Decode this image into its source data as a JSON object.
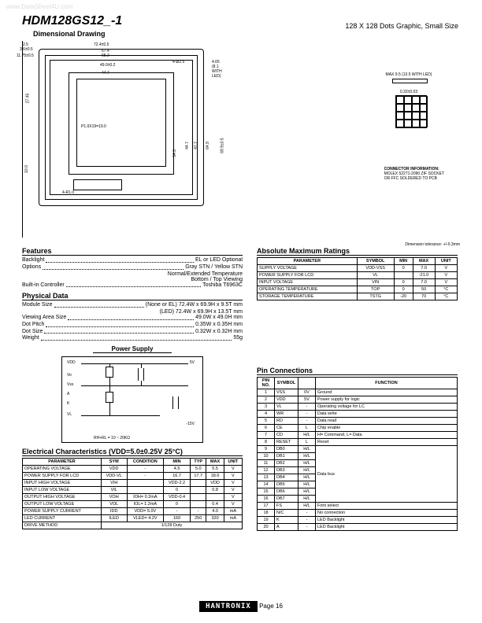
{
  "watermark": "www.DataSheet4U.com",
  "part_number": "HDM128GS12_-1",
  "dimensional_heading": "Dimensional Drawing",
  "right_heading": "128 X 128 Dots Graphic, Small Size",
  "tolerance": "Dimension tolerance: +/-0.3mm",
  "connector_heading": "CONNECTOR INFORMATION:",
  "connector_line1": "MOLEX 52271-2090 ZIF SOCKET",
  "connector_line2": "OR FFC SOLDERED TO PCB",
  "max_led": "MAX 9.5 (13.5 WITH LED)",
  "pitch_label": "0.32±0.03",
  "dim_724": "72.4±0.5",
  "dim_674": "67.4",
  "dim_652": "65.2",
  "dim_49": "49.0±0.2",
  "dim_447": "44.7",
  "dim_25": "2.5",
  "dim_465": "4.65 (8.1 WITH LED)",
  "dim_4025": "4-Ø2.5",
  "dim_4r10": "4-R1.0",
  "dim_p10": "P1.0X19=19.0",
  "dim_36": "3.6±0.5",
  "dim_1175": "11.75±0.5",
  "dim_2745": "27.45",
  "dim_100": "10.0",
  "dim_543": "54.3",
  "dim_v447": "44.7",
  "dim_v477": "47.7",
  "dim_649": "64.9",
  "dim_699": "69.9±0.5",
  "features_heading": "Features",
  "feat_backlight_k": "Backlight",
  "feat_backlight_v": "EL or LED Optional",
  "feat_options_k": "Options",
  "feat_options_v1": "Gray STN / Yellow STN",
  "feat_options_v2": "Normal/Extended Temperature",
  "feat_options_v3": "Bottom / Top Viewing",
  "feat_controller_k": "Built-in Controller",
  "feat_controller_v": "Toshiba T6963C",
  "physical_heading": "Physical Data",
  "phys_module_k": "Module Size",
  "phys_module_v1": "(None or EL) 72.4W x 69.9H x 9.5T mm",
  "phys_module_v2": "(LED) 72.4W x 69.9H x 13.5T mm",
  "phys_view_k": "Viewing Area Size",
  "phys_view_v": "49.0W x 49.0H mm",
  "phys_pitch_k": "Dot Pitch",
  "phys_pitch_v": "0.35W x 0.35H mm",
  "phys_dot_k": "Dot Size",
  "phys_dot_v": "0.32W x 0.32H mm",
  "phys_weight_k": "Weight",
  "phys_weight_v": "55g",
  "power_heading": "Power Supply",
  "power_vdd": "VDD",
  "power_5v": "5V",
  "power_15v": "-15V",
  "power_vo": "Vo",
  "power_vss": "Vss",
  "power_vl": "VL",
  "power_a": "A",
  "power_k": "K",
  "power_res": "RH+RL = 10 ~ 20KΩ",
  "elec_heading": "Electrical Characteristics (VDD=5.0±0.25V 25°C)",
  "elec_headers": [
    "PARAMETER",
    "SYM",
    "CONDITION",
    "MIN",
    "TYP",
    "MAX",
    "UNIT"
  ],
  "elec_rows": [
    [
      "OPERATING VOLTAGE",
      "VDD",
      "-",
      "4.5",
      "5.0",
      "5.5",
      "V"
    ],
    [
      "POWER SUPPLY FOR LCD",
      "VDD-VL",
      "-",
      "16.7",
      "17.7",
      "18.6",
      "V"
    ],
    [
      "INPUT HIGH VOLTAGE",
      "VIH",
      "",
      "VDD-2.2",
      "",
      "VDD",
      "V"
    ],
    [
      "INPUT LOW VOLTAGE",
      "VIL",
      "",
      "0",
      "",
      "0.8",
      "V"
    ],
    [
      "OUTPUT HIGH VOLTAGE",
      "VOH",
      "IOH= 0.2mA",
      "VDD-0.4",
      "",
      "",
      "V"
    ],
    [
      "OUTPUT LOW VOLTAGE",
      "VOL",
      "IOL= 1.2mA",
      "0",
      "",
      "0.4",
      "V"
    ],
    [
      "POWER SUPPLY CURRENT",
      "IDD",
      "VDD= 5.0V",
      "-",
      "-",
      "4.0",
      "mA"
    ],
    [
      "LED CURRENT",
      "ILED",
      "VLED= 4.2V",
      "160",
      "250",
      "320",
      "mA"
    ]
  ],
  "drive_method_k": "DRIVE METHOD",
  "drive_method_v": "1/128 Duty",
  "abs_heading": "Absolute Maximum Ratings",
  "abs_headers": [
    "PARAMETER",
    "SYMBOL",
    "MIN",
    "MAX",
    "UNIT"
  ],
  "abs_rows": [
    [
      "SUPPLY VOLTAGE",
      "VDD-VSS",
      "0",
      "7.0",
      "V"
    ],
    [
      "POWER SUPPLY FOR LCD",
      "VL",
      "",
      "-21.0",
      "V"
    ],
    [
      "INPUT VOLTAGE",
      "VIN",
      "0",
      "7.0",
      "V"
    ],
    [
      "OPERATING TEMPERATURE",
      "TOP",
      "0",
      "50",
      "°C"
    ],
    [
      "STORAGE TEMPERATURE",
      "TSTG",
      "-20",
      "70",
      "°C"
    ]
  ],
  "pin_heading": "Pin Connections",
  "pin_headers": [
    "PIN NO.",
    "SYMBOL",
    "",
    "FUNCTION"
  ],
  "pin_rows": [
    [
      "1",
      "VSS",
      "0V",
      "Ground"
    ],
    [
      "2",
      "VDD",
      "5V",
      "Power supply for logic"
    ],
    [
      "3",
      "VL",
      "-",
      "Operating voltage for LC"
    ],
    [
      "4",
      "WR",
      "-",
      "Data write"
    ],
    [
      "5",
      "RD",
      "-",
      "Data read"
    ],
    [
      "6",
      "CE",
      "L",
      "Chip enable"
    ],
    [
      "7",
      "CD",
      "H/L",
      "H= Command, L= Data"
    ],
    [
      "8",
      "RESET",
      "L",
      "Reset"
    ],
    [
      "9",
      "DB0",
      "H/L",
      ""
    ],
    [
      "10",
      "DB1",
      "H/L",
      ""
    ],
    [
      "11",
      "DB2",
      "H/L",
      ""
    ],
    [
      "12",
      "DB3",
      "H/L",
      ""
    ],
    [
      "13",
      "DB4",
      "H/L",
      "Data bus"
    ],
    [
      "14",
      "DB5",
      "H/L",
      ""
    ],
    [
      "15",
      "DB6",
      "H/L",
      ""
    ],
    [
      "16",
      "DB7",
      "H/L",
      ""
    ],
    [
      "17",
      "FS",
      "H/L",
      "Font select"
    ],
    [
      "18",
      "N/C",
      "-",
      "No connection"
    ],
    [
      "19",
      "K",
      "-",
      "LED Backlight"
    ],
    [
      "20",
      "A",
      "-",
      "LED Backlight"
    ]
  ],
  "footer_logo": "HANTRONIX",
  "footer_page": "Page 16"
}
